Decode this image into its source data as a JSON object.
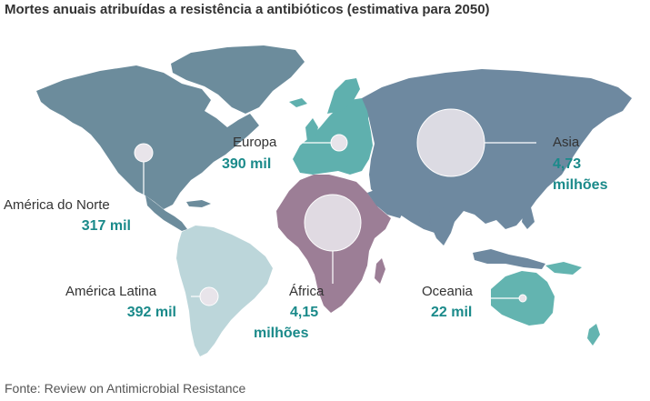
{
  "title": "Mortes anuais atribuídas a resistência a antibióticos (estimativa para 2050)",
  "source": "Fonte: Review on Antimicrobial Resistance",
  "colors": {
    "north_america": "#6c8c9c",
    "latin_america": "#bcd6da",
    "europe": "#5fb0ae",
    "africa": "#9c7e96",
    "asia": "#6e89a0",
    "oceania": "#63b4b0",
    "value_text": "#1a8a8a",
    "bubble": "#e8e4ea"
  },
  "regions": [
    {
      "id": "north_america",
      "name": "América do Norte",
      "value": "317 mil"
    },
    {
      "id": "europe",
      "name": "Europa",
      "value": "390 mil"
    },
    {
      "id": "asia",
      "name": "Asia",
      "value_line1": "4,73",
      "value_line2": "milhões"
    },
    {
      "id": "latin_america",
      "name": "América Latina",
      "value": "392 mil"
    },
    {
      "id": "africa",
      "name": "África",
      "value_line1": "4,15",
      "value_line2": "milhões"
    },
    {
      "id": "oceania",
      "name": "Oceania",
      "value": "22 mil"
    }
  ]
}
